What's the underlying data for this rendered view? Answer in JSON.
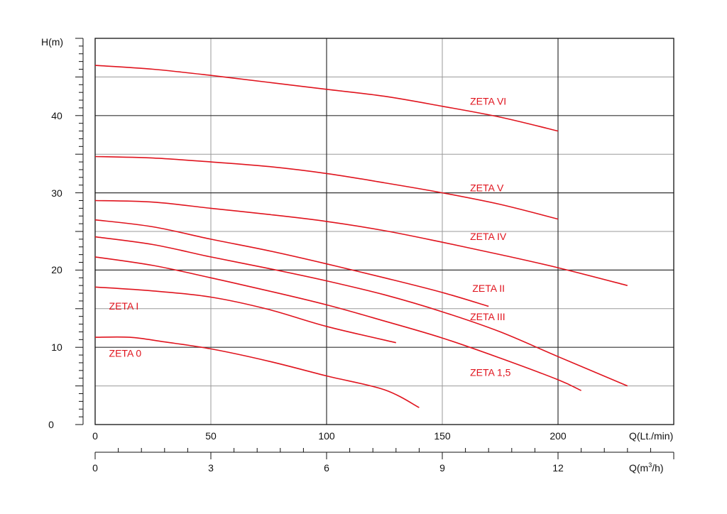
{
  "chart_data": {
    "type": "line",
    "title": "",
    "ylabel": "H(m)",
    "xlabel": "Q(Lt./min)",
    "x2label_pre": "Q(m",
    "x2label_sup": "3",
    "x2label_post": "/h)",
    "xlim": [
      0,
      250
    ],
    "ylim": [
      0,
      50
    ],
    "x_ticks": [
      "0",
      "50",
      "100",
      "150",
      "200"
    ],
    "x2_ticks": [
      "0",
      "3",
      "6",
      "9",
      "12"
    ],
    "y_ticks": [
      "0",
      "10",
      "20",
      "30",
      "40"
    ],
    "grid": true,
    "series": [
      {
        "name": "ZETA VI",
        "x": [
          0,
          25,
          50,
          75,
          100,
          125,
          150,
          175,
          200
        ],
        "y": [
          46.5,
          46.0,
          45.2,
          44.3,
          43.4,
          42.5,
          41.2,
          39.8,
          38.0
        ]
      },
      {
        "name": "ZETA V",
        "x": [
          0,
          25,
          50,
          75,
          100,
          125,
          150,
          175,
          200
        ],
        "y": [
          34.7,
          34.5,
          34.0,
          33.4,
          32.5,
          31.3,
          30.0,
          28.5,
          26.6
        ]
      },
      {
        "name": "ZETA IV",
        "x": [
          0,
          25,
          50,
          75,
          100,
          125,
          150,
          175,
          200,
          230
        ],
        "y": [
          29.0,
          28.8,
          28.0,
          27.2,
          26.3,
          25.1,
          23.6,
          22.0,
          20.3,
          18.0
        ]
      },
      {
        "name": "ZETA II",
        "x": [
          0,
          25,
          50,
          75,
          100,
          125,
          150,
          170
        ],
        "y": [
          26.5,
          25.6,
          24.0,
          22.5,
          20.8,
          19.0,
          17.1,
          15.3
        ]
      },
      {
        "name": "ZETA III",
        "x": [
          0,
          25,
          50,
          75,
          100,
          125,
          150,
          175,
          200,
          230
        ],
        "y": [
          24.3,
          23.3,
          21.7,
          20.2,
          18.6,
          16.8,
          14.6,
          12.0,
          8.8,
          5.0
        ]
      },
      {
        "name": "ZETA 1,5",
        "x": [
          0,
          25,
          50,
          75,
          100,
          125,
          150,
          175,
          200,
          210
        ],
        "y": [
          21.7,
          20.6,
          19.0,
          17.3,
          15.5,
          13.4,
          11.2,
          8.6,
          5.8,
          4.4
        ]
      },
      {
        "name": "ZETA I",
        "x": [
          0,
          25,
          50,
          75,
          100,
          130
        ],
        "y": [
          17.8,
          17.3,
          16.5,
          14.9,
          12.7,
          10.6
        ]
      },
      {
        "name": "ZETA 0",
        "x": [
          0,
          15,
          30,
          50,
          75,
          100,
          125,
          140
        ],
        "y": [
          11.3,
          11.3,
          10.7,
          9.8,
          8.2,
          6.3,
          4.5,
          2.2
        ]
      }
    ],
    "labels": [
      {
        "text": "ZETA VI",
        "x": 162,
        "y": 41.4
      },
      {
        "text": "ZETA V",
        "x": 162,
        "y": 30.2
      },
      {
        "text": "ZETA IV",
        "x": 162,
        "y": 23.9
      },
      {
        "text": "ZETA II",
        "x": 163,
        "y": 17.2
      },
      {
        "text": "ZETA III",
        "x": 162,
        "y": 13.5
      },
      {
        "text": "ZETA 1,5",
        "x": 162,
        "y": 6.3
      },
      {
        "text": "ZETA I",
        "x": 6,
        "y": 14.9
      },
      {
        "text": "ZETA 0",
        "x": 6,
        "y": 8.8
      }
    ],
    "line_color": "#e0141e"
  }
}
